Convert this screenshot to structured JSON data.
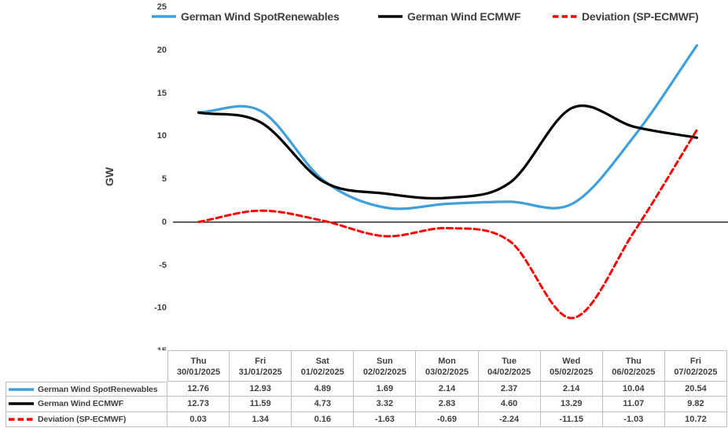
{
  "chart_data": {
    "type": "line",
    "title": "",
    "xlabel": "",
    "ylabel": "GW",
    "ylim": [
      -15,
      25
    ],
    "y_ticks": [
      25,
      20,
      15,
      10,
      5,
      0,
      -5,
      -10,
      -15
    ],
    "grid": false,
    "legend_position": "top",
    "line_smoothing": "spline",
    "x_day_labels": [
      "Thu",
      "Fri",
      "Sat",
      "Sun",
      "Mon",
      "Tue",
      "Wed",
      "Thu",
      "Fri"
    ],
    "x_date_labels": [
      "30/01/2025",
      "31/01/2025",
      "01/02/2025",
      "02/02/2025",
      "03/02/2025",
      "04/02/2025",
      "05/02/2025",
      "06/02/2025",
      "07/02/2025"
    ],
    "series": [
      {
        "name": "German Wind SpotRenewables",
        "color": "#3fa0dc",
        "line_style": "solid",
        "values": [
          12.76,
          12.93,
          4.89,
          1.69,
          2.14,
          2.37,
          2.14,
          10.04,
          20.54
        ]
      },
      {
        "name": "German Wind ECMWF",
        "color": "#000000",
        "line_style": "solid",
        "values": [
          12.73,
          11.59,
          4.73,
          3.32,
          2.83,
          4.6,
          13.29,
          11.07,
          9.82
        ]
      },
      {
        "name": "Deviation (SP-ECMWF)",
        "color": "#ff0000",
        "line_style": "dashed",
        "values": [
          0.03,
          1.34,
          0.16,
          -1.63,
          -0.69,
          -2.24,
          -11.15,
          -1.03,
          10.72
        ]
      }
    ],
    "axis_line_color": "#000000",
    "table_border_color": "#bfbfbf",
    "text_color": "#3f3f3f",
    "value_decimals": 2
  }
}
